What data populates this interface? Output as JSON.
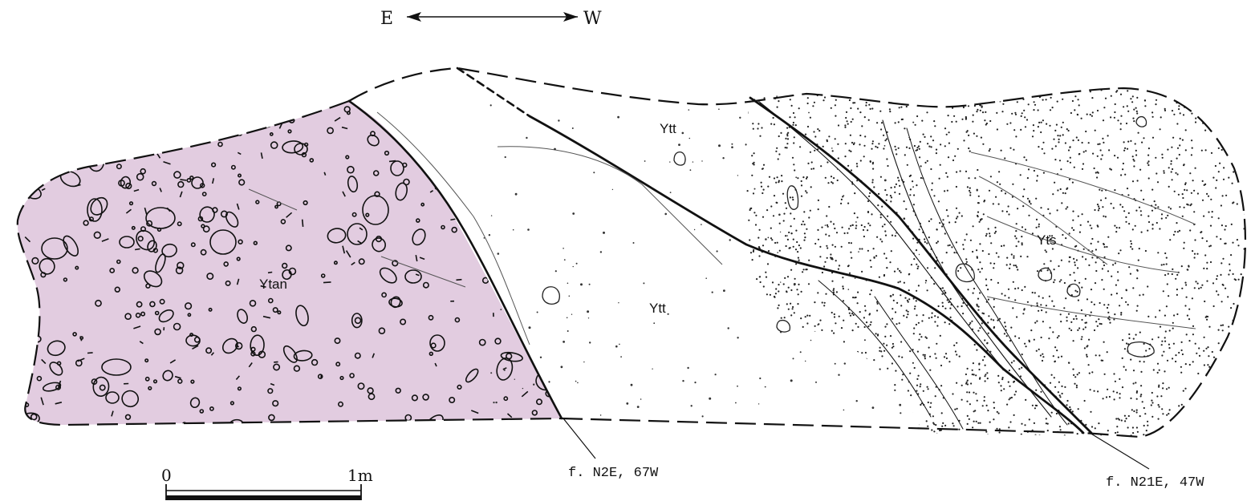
{
  "orientation": {
    "east": "E",
    "west": "W"
  },
  "units": {
    "ytan": "Ytan",
    "ytt_upper": "Ytt",
    "ytt_lower": "Ytt",
    "yts": "Yts"
  },
  "faults": {
    "left": "f. N2E, 67W",
    "right": "f. N21E, 47W"
  },
  "scale_bar": {
    "start": "0",
    "end": "1m"
  },
  "colors": {
    "ytan_fill": "#e2cce0",
    "ink": "#111111",
    "background": "#ffffff"
  }
}
